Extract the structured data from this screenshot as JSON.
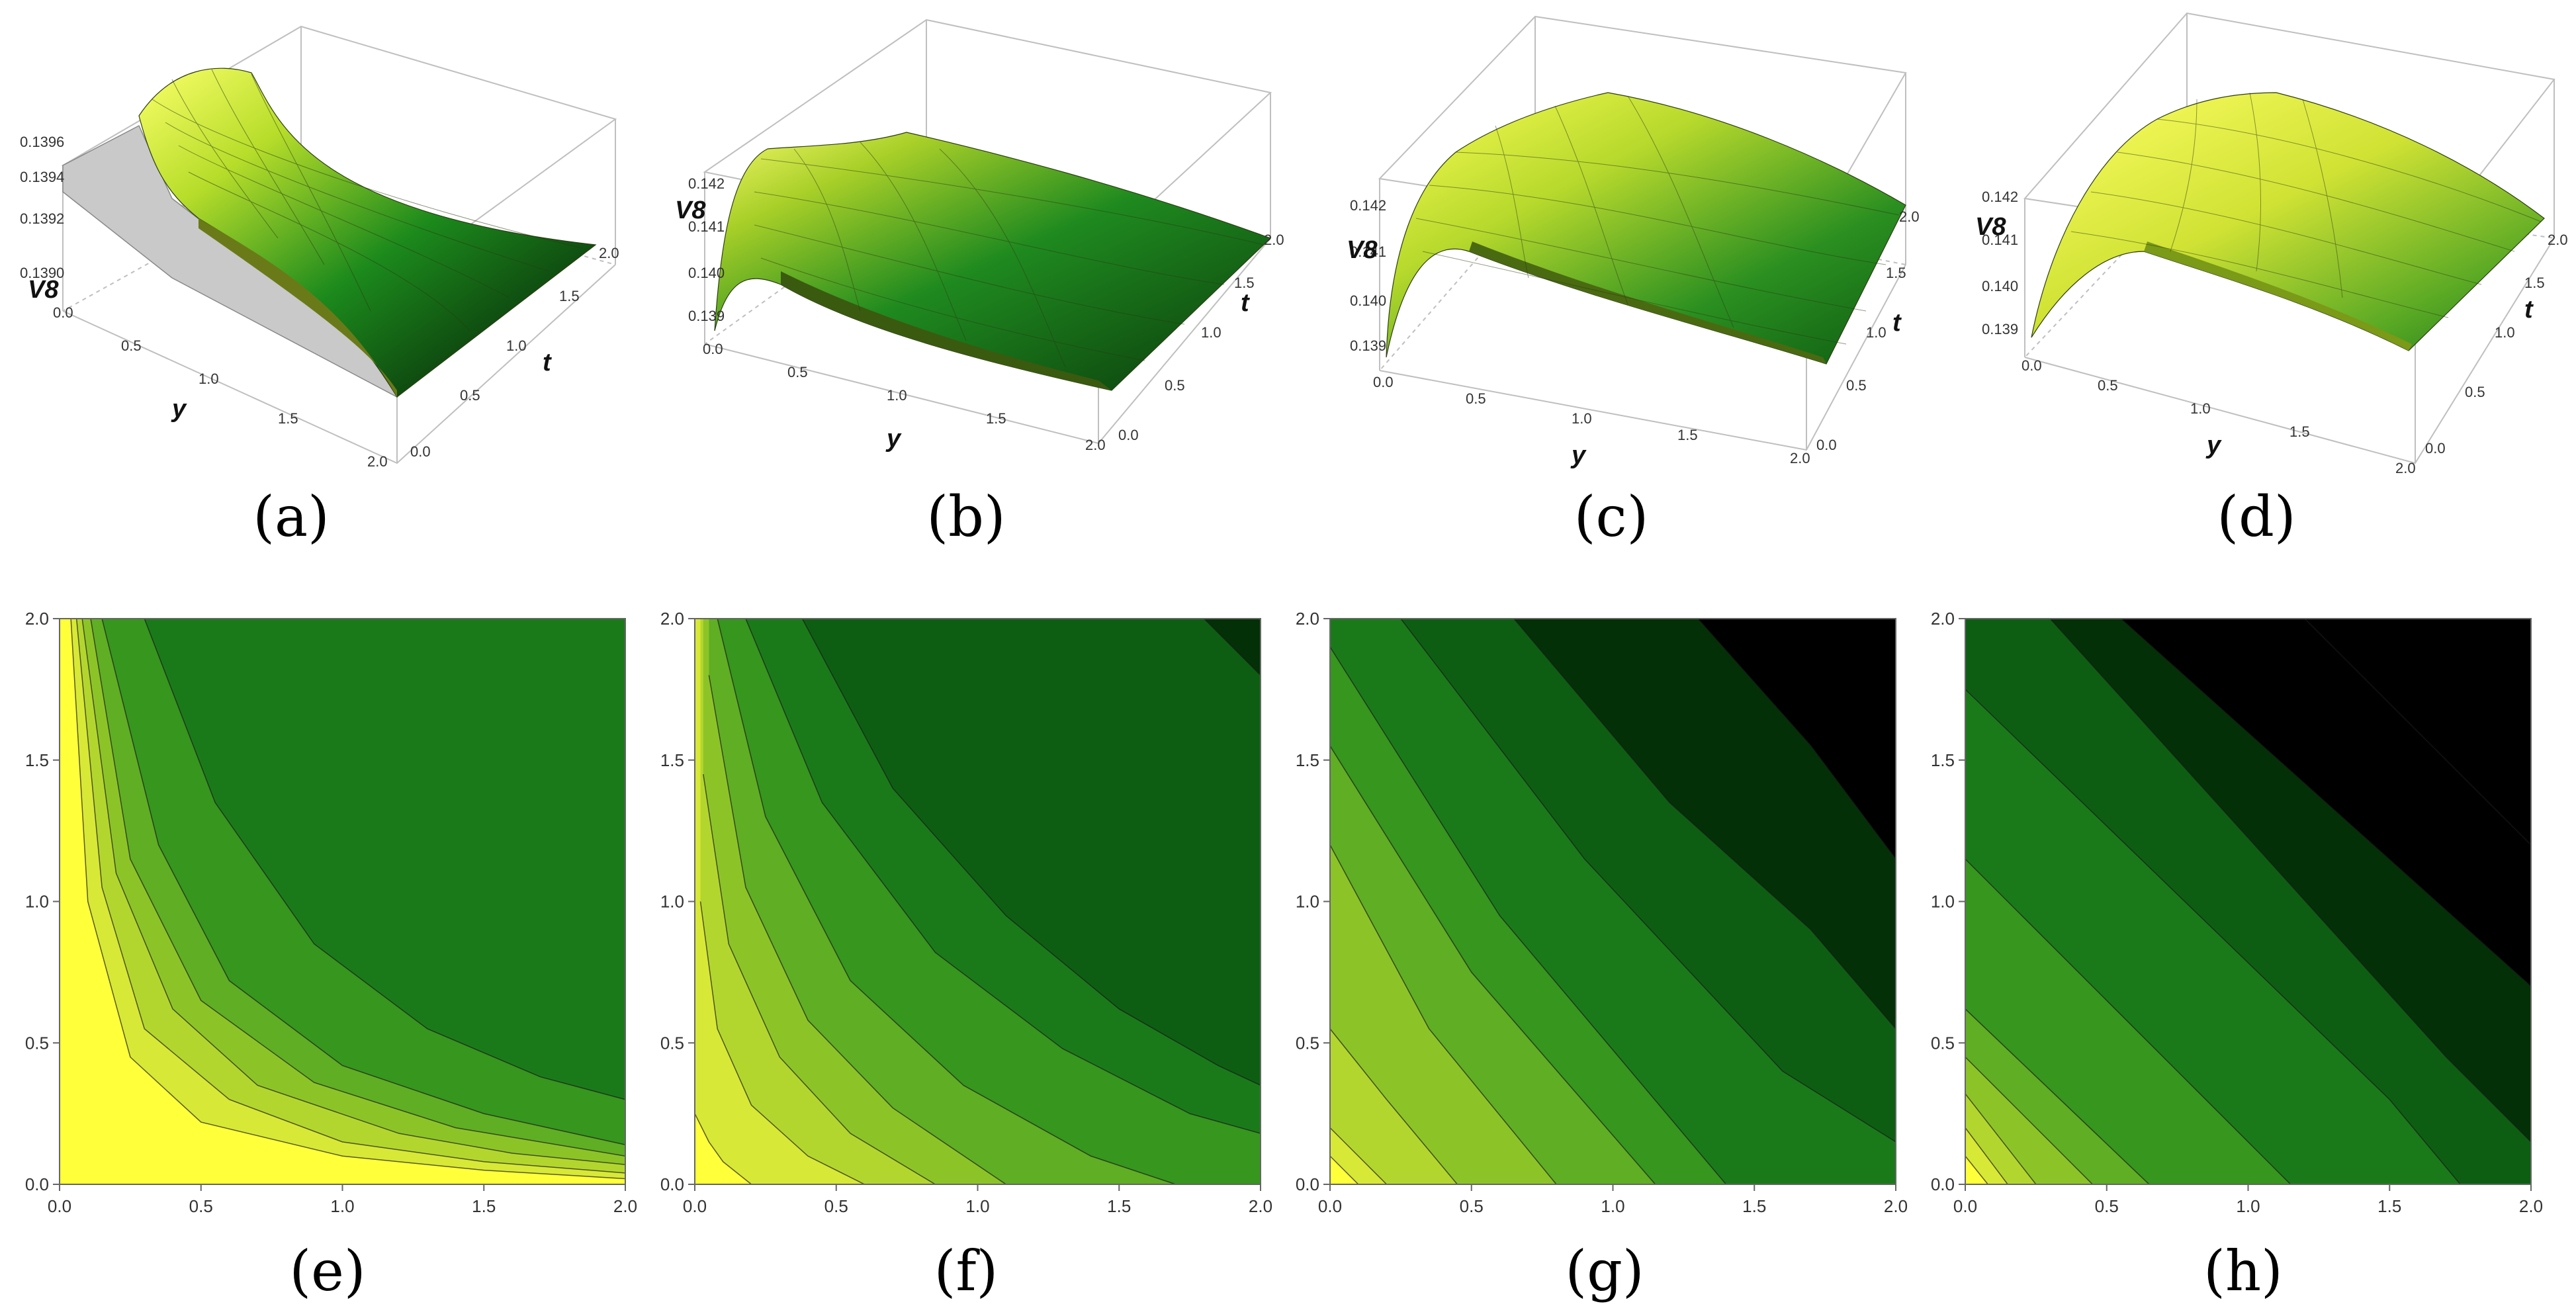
{
  "colors": {
    "surface_low": "#0a1a0a",
    "surface_mid": "#1a7a1a",
    "surface_high": "#e0ec30",
    "contour_levels": [
      "#ffff3a",
      "#d8e836",
      "#b3d62e",
      "#8cc428",
      "#5fae24",
      "#36961e",
      "#1a7a1a",
      "#0d5e12",
      "#033006",
      "#000000"
    ]
  },
  "chart_data": [
    {
      "type": "surface",
      "panel": "(a)",
      "zlabel": "V8",
      "xlabel": "y",
      "ylabel": "t",
      "xticks": [
        "0.0",
        "0.5",
        "1.0",
        "1.5",
        "2.0"
      ],
      "yticks": [
        "0.0",
        "0.5",
        "1.0",
        "1.5",
        "2.0"
      ],
      "zticks": [
        "0.1390",
        "0.1392",
        "0.1394",
        "0.1396"
      ],
      "zlim": [
        0.139,
        0.1397
      ]
    },
    {
      "type": "surface",
      "panel": "(b)",
      "zlabel": "V8",
      "xlabel": "y",
      "ylabel": "t",
      "xticks": [
        "0.0",
        "0.5",
        "1.0",
        "1.5",
        "2.0"
      ],
      "yticks": [
        "0.0",
        "0.5",
        "1.0",
        "1.5",
        "2.0"
      ],
      "zticks": [
        "0.139",
        "0.140",
        "0.141",
        "0.142"
      ],
      "zlim": [
        0.1388,
        0.1422
      ]
    },
    {
      "type": "surface",
      "panel": "(c)",
      "zlabel": "V8",
      "xlabel": "y",
      "ylabel": "t",
      "xticks": [
        "0.0",
        "0.5",
        "1.0",
        "1.5",
        "2.0"
      ],
      "yticks": [
        "0.0",
        "0.5",
        "1.0",
        "1.5",
        "2.0"
      ],
      "zticks": [
        "0.139",
        "0.140",
        "0.141",
        "0.142"
      ],
      "zlim": [
        0.1388,
        0.1422
      ]
    },
    {
      "type": "surface",
      "panel": "(d)",
      "zlabel": "V8",
      "xlabel": "y",
      "ylabel": "t",
      "xticks": [
        "0.0",
        "0.5",
        "1.0",
        "1.5",
        "2.0"
      ],
      "yticks": [
        "0.0",
        "0.5",
        "1.0",
        "1.5",
        "2.0"
      ],
      "zticks": [
        "0.139",
        "0.140",
        "0.141",
        "0.142"
      ],
      "zlim": [
        0.1388,
        0.1422
      ]
    },
    {
      "type": "contour",
      "panel": "(e)",
      "xlim": [
        0,
        2
      ],
      "ylim": [
        0,
        2
      ],
      "xticks": [
        "0.0",
        "0.5",
        "1.0",
        "1.5",
        "2.0"
      ],
      "yticks": [
        "0.0",
        "0.5",
        "1.0",
        "1.5",
        "2.0"
      ],
      "levels": 8,
      "boundaries": [
        {
          "level": 1,
          "y": [
            0.04,
            0.1,
            0.25,
            0.5,
            1.0,
            1.5,
            2.0
          ],
          "t": [
            2.0,
            1.0,
            0.45,
            0.22,
            0.1,
            0.05,
            0.02
          ]
        },
        {
          "level": 2,
          "y": [
            0.06,
            0.15,
            0.3,
            0.6,
            1.0,
            1.5,
            2.0
          ],
          "t": [
            2.0,
            1.05,
            0.55,
            0.3,
            0.15,
            0.08,
            0.04
          ]
        },
        {
          "level": 3,
          "y": [
            0.08,
            0.2,
            0.4,
            0.7,
            1.2,
            1.6,
            2.0
          ],
          "t": [
            2.0,
            1.1,
            0.62,
            0.35,
            0.18,
            0.11,
            0.07
          ]
        },
        {
          "level": 4,
          "y": [
            0.11,
            0.25,
            0.5,
            0.9,
            1.4,
            2.0
          ],
          "t": [
            2.0,
            1.15,
            0.65,
            0.36,
            0.2,
            0.1
          ]
        },
        {
          "level": 5,
          "y": [
            0.15,
            0.35,
            0.6,
            1.0,
            1.5,
            2.0
          ],
          "t": [
            2.0,
            1.2,
            0.72,
            0.42,
            0.25,
            0.14
          ]
        },
        {
          "level": 6,
          "y": [
            0.3,
            0.55,
            0.9,
            1.3,
            1.7,
            2.0
          ],
          "t": [
            2.0,
            1.35,
            0.85,
            0.55,
            0.38,
            0.3
          ]
        }
      ]
    },
    {
      "type": "contour",
      "panel": "(f)",
      "xlim": [
        0,
        2
      ],
      "ylim": [
        0,
        2
      ],
      "xticks": [
        "0.0",
        "0.5",
        "1.0",
        "1.5",
        "2.0"
      ],
      "yticks": [
        "0.0",
        "0.5",
        "1.0",
        "1.5",
        "2.0"
      ],
      "levels": 9,
      "boundaries": [
        {
          "level": 1,
          "y": [
            0.0,
            0.05,
            0.1,
            0.2
          ],
          "t": [
            0.25,
            0.15,
            0.08,
            0.0
          ]
        },
        {
          "level": 2,
          "y": [
            0.02,
            0.08,
            0.2,
            0.4,
            0.6
          ],
          "t": [
            1.0,
            0.55,
            0.28,
            0.1,
            0.0
          ]
        },
        {
          "level": 3,
          "y": [
            0.03,
            0.12,
            0.3,
            0.55,
            0.85
          ],
          "t": [
            1.45,
            0.85,
            0.45,
            0.18,
            0.0
          ]
        },
        {
          "level": 4,
          "y": [
            0.05,
            0.18,
            0.4,
            0.7,
            1.1
          ],
          "t": [
            1.8,
            1.05,
            0.58,
            0.27,
            0.0
          ]
        },
        {
          "level": 5,
          "y": [
            0.08,
            0.25,
            0.55,
            0.95,
            1.4,
            1.7
          ],
          "t": [
            2.0,
            1.3,
            0.72,
            0.35,
            0.1,
            0.0
          ]
        },
        {
          "level": 6,
          "y": [
            0.18,
            0.45,
            0.85,
            1.3,
            1.75,
            2.0
          ],
          "t": [
            2.0,
            1.35,
            0.82,
            0.48,
            0.25,
            0.18
          ]
        },
        {
          "level": 7,
          "y": [
            0.38,
            0.7,
            1.1,
            1.5,
            1.85,
            2.0
          ],
          "t": [
            2.0,
            1.4,
            0.95,
            0.62,
            0.42,
            0.35
          ]
        },
        {
          "level": 8,
          "y": [
            1.8,
            2.0
          ],
          "t": [
            2.0,
            1.8
          ]
        }
      ]
    },
    {
      "type": "contour",
      "panel": "(g)",
      "xlim": [
        0,
        2
      ],
      "ylim": [
        0,
        2
      ],
      "xticks": [
        "0.0",
        "0.5",
        "1.0",
        "1.5",
        "2.0"
      ],
      "yticks": [
        "0.0",
        "0.5",
        "1.0",
        "1.5",
        "2.0"
      ],
      "levels": 9,
      "boundaries": [
        {
          "level": 1,
          "y": [
            0.0,
            0.05,
            0.1
          ],
          "t": [
            0.1,
            0.05,
            0.0
          ]
        },
        {
          "level": 2,
          "y": [
            0.0,
            0.1,
            0.2
          ],
          "t": [
            0.2,
            0.1,
            0.0
          ]
        },
        {
          "level": 3,
          "y": [
            0.0,
            0.2,
            0.45
          ],
          "t": [
            0.55,
            0.3,
            0.0
          ]
        },
        {
          "level": 4,
          "y": [
            0.0,
            0.35,
            0.8
          ],
          "t": [
            1.2,
            0.55,
            0.0
          ]
        },
        {
          "level": 5,
          "y": [
            0.0,
            0.5,
            1.15
          ],
          "t": [
            1.55,
            0.75,
            0.0
          ]
        },
        {
          "level": 6,
          "y": [
            0.0,
            0.6,
            1.4
          ],
          "t": [
            1.9,
            0.95,
            0.0
          ]
        },
        {
          "level": 7,
          "y": [
            0.25,
            0.9,
            1.6,
            2.0
          ],
          "t": [
            2.0,
            1.15,
            0.4,
            0.15
          ]
        },
        {
          "level": 8,
          "y": [
            0.65,
            1.2,
            1.7,
            2.0
          ],
          "t": [
            2.0,
            1.35,
            0.9,
            0.55
          ]
        },
        {
          "level": 9,
          "y": [
            1.3,
            1.7,
            2.0
          ],
          "t": [
            2.0,
            1.55,
            1.15
          ]
        }
      ]
    },
    {
      "type": "contour",
      "panel": "(h)",
      "xlim": [
        0,
        2
      ],
      "ylim": [
        0,
        2
      ],
      "xticks": [
        "0.0",
        "0.5",
        "1.0",
        "1.5",
        "2.0"
      ],
      "yticks": [
        "0.0",
        "0.5",
        "1.0",
        "1.5",
        "2.0"
      ],
      "levels": 10,
      "boundaries": [
        {
          "level": 1,
          "y": [
            0.0,
            0.08
          ],
          "t": [
            0.1,
            0.0
          ]
        },
        {
          "level": 2,
          "y": [
            0.0,
            0.15
          ],
          "t": [
            0.2,
            0.0
          ]
        },
        {
          "level": 3,
          "y": [
            0.0,
            0.25
          ],
          "t": [
            0.32,
            0.0
          ]
        },
        {
          "level": 4,
          "y": [
            0.0,
            0.45
          ],
          "t": [
            0.45,
            0.0
          ]
        },
        {
          "level": 5,
          "y": [
            0.0,
            0.65
          ],
          "t": [
            0.62,
            0.0
          ]
        },
        {
          "level": 6,
          "y": [
            0.0,
            1.15
          ],
          "t": [
            1.15,
            0.0
          ]
        },
        {
          "level": 7,
          "y": [
            0.0,
            1.5,
            1.75
          ],
          "t": [
            1.75,
            0.3,
            0.0
          ]
        },
        {
          "level": 8,
          "y": [
            0.3,
            1.7,
            2.0
          ],
          "t": [
            2.0,
            0.45,
            0.15
          ]
        },
        {
          "level": 9,
          "y": [
            0.55,
            2.0
          ],
          "t": [
            2.0,
            0.7
          ]
        },
        {
          "level": 10,
          "y": [
            1.2,
            2.0
          ],
          "t": [
            2.0,
            1.2
          ]
        }
      ]
    }
  ]
}
